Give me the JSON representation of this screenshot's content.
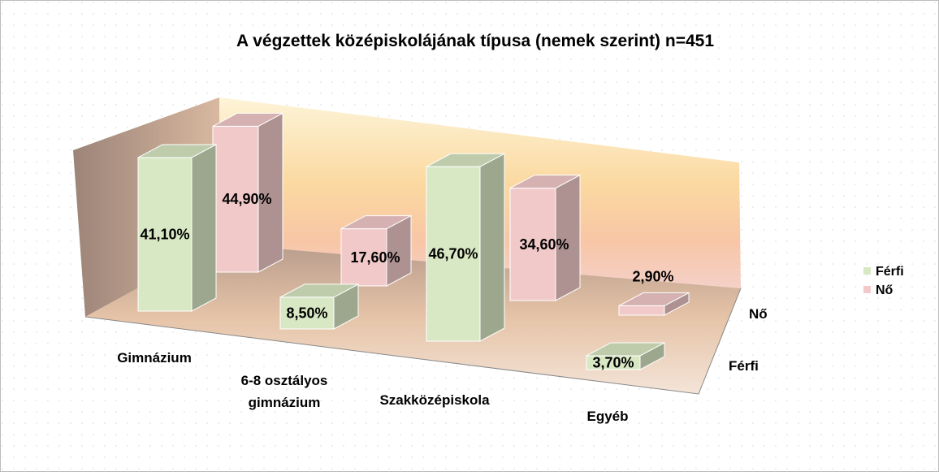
{
  "chart_data": {
    "type": "bar3d",
    "title": "A végzettek középiskolájának típusa (nemek szerint) n=451",
    "categories": [
      "Gimnázium",
      "6-8 osztályos gimnázium",
      "Szakközépiskola",
      "Egyéb"
    ],
    "series": [
      {
        "name": "Férfi",
        "color": "#d9e8c4",
        "values": [
          41.1,
          8.5,
          46.7,
          3.7
        ],
        "value_labels": [
          "41,10%",
          "8,50%",
          "46,70%",
          "3,70%"
        ]
      },
      {
        "name": "Nő",
        "color": "#f2c9c9",
        "values": [
          44.9,
          17.6,
          34.6,
          2.9
        ],
        "value_labels": [
          "44,90%",
          "17,60%",
          "34,60%",
          "2,90%"
        ]
      }
    ],
    "legend": "right"
  }
}
